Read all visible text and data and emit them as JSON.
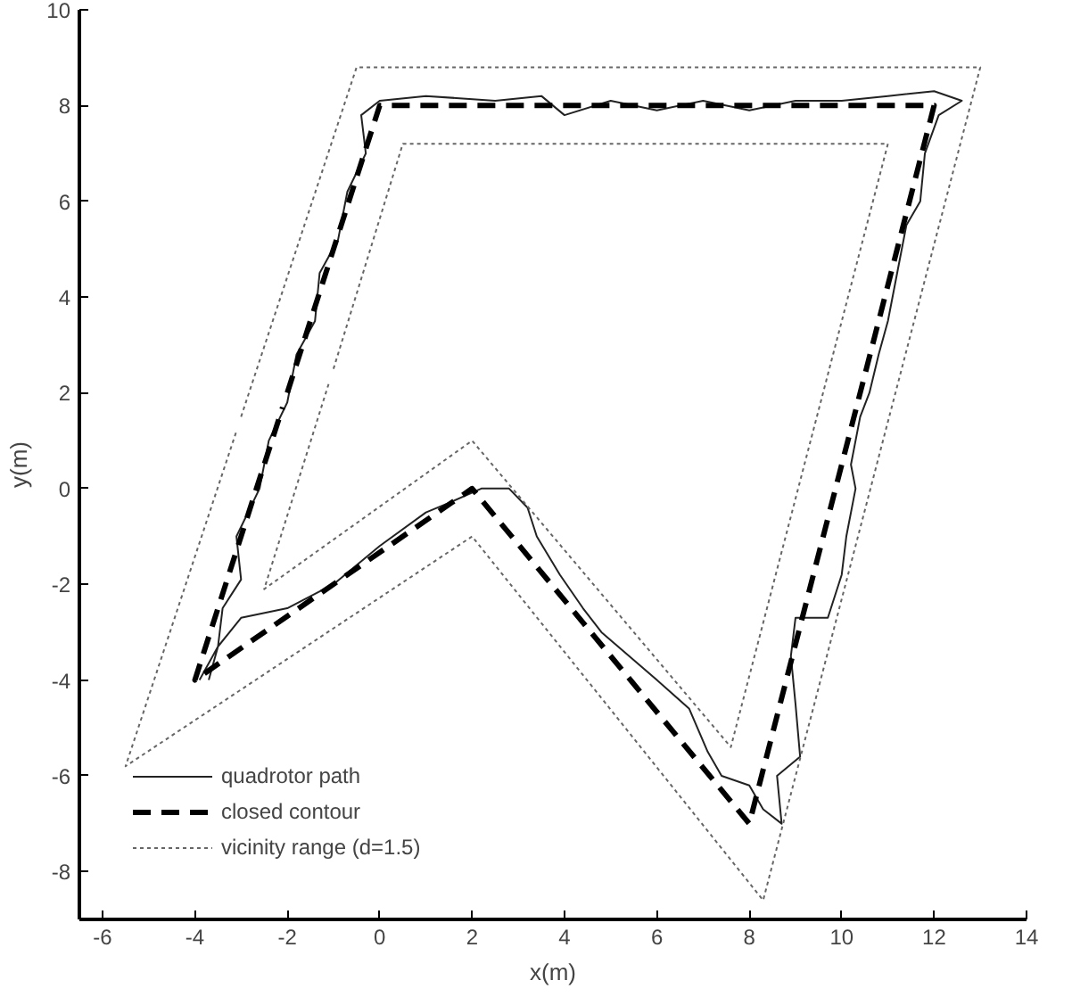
{
  "chart_data": {
    "type": "line",
    "xlabel": "x(m)",
    "ylabel": "y(m)",
    "xlim": [
      -6.5,
      14
    ],
    "ylim": [
      -9,
      10
    ],
    "xticks": [
      -6,
      -4,
      -2,
      0,
      2,
      4,
      6,
      8,
      10,
      12,
      14
    ],
    "yticks": [
      -8,
      -6,
      -4,
      -2,
      0,
      2,
      4,
      6,
      8,
      10
    ],
    "grid": false,
    "legend": "bottom left",
    "series": [
      {
        "name": "quadrotor path",
        "color": "#222222",
        "line_style": "solid",
        "x": [
          -3.9,
          -3.5,
          -3.4,
          -3.0,
          -3.1,
          -2.6,
          -2.4,
          -2.0,
          -1.8,
          -1.4,
          -1.3,
          -0.9,
          -0.7,
          -0.3,
          -0.4,
          0,
          1,
          2.5,
          3.5,
          4,
          5,
          6,
          7,
          8,
          9,
          10,
          11,
          12,
          12.6,
          12.1,
          11.8,
          11.7,
          11.4,
          11.2,
          11.0,
          10.8,
          10.6,
          10.4,
          10.2,
          10.3,
          10.1,
          10.0,
          9.7,
          9.0,
          8.9,
          9.0,
          9.1,
          8.6,
          8.7,
          8.3,
          8.0,
          7.4,
          7.1,
          6.7,
          6.0,
          5.4,
          4.8,
          4.4,
          3.9,
          3.4,
          3.2,
          2.8,
          2.2,
          1.5,
          1,
          0,
          -1,
          -2,
          -3,
          -3.5,
          -3.7
        ],
        "values": [
          -4.0,
          -3.3,
          -2.5,
          -1.9,
          -1.0,
          0.0,
          1.0,
          1.8,
          2.8,
          3.5,
          4.5,
          5.2,
          6.2,
          7.0,
          7.8,
          8.1,
          8.2,
          8.1,
          8.2,
          7.8,
          8.1,
          7.9,
          8.1,
          7.9,
          8.1,
          8.1,
          8.2,
          8.3,
          8.1,
          7.8,
          7,
          6,
          5.5,
          4.5,
          3.5,
          2.8,
          2.0,
          1.5,
          0.5,
          0,
          -1,
          -1.8,
          -2.7,
          -2.7,
          -3.5,
          -4.5,
          -5.6,
          -6.0,
          -7.0,
          -6.7,
          -6.2,
          -6.0,
          -5.5,
          -4.6,
          -4.0,
          -3.5,
          -3.0,
          -2.5,
          -1.8,
          -1.0,
          -0.4,
          0,
          0,
          -0.3,
          -0.5,
          -1.2,
          -2.0,
          -2.5,
          -2.7,
          -3.3,
          -4.0
        ]
      },
      {
        "name": "closed contour",
        "color": "#000000",
        "line_style": "dashed",
        "x": [
          -2,
          0,
          12,
          8,
          2,
          -4,
          -2.1
        ],
        "values": [
          2,
          8,
          8,
          -7,
          0,
          -4,
          1.7
        ]
      },
      {
        "name": "vicinity range (d=1.5)",
        "color": "#666666",
        "line_style": "dotted",
        "x": [
          -3,
          -0.5,
          13,
          8.3,
          2,
          -5.5,
          -3.1,
          null,
          -1,
          0.5,
          11,
          7.6,
          2,
          -2.5,
          -1.1
        ],
        "values": [
          1.5,
          8.8,
          8.8,
          -8.6,
          -1,
          -5.8,
          1.2,
          null,
          2.5,
          7.2,
          7.2,
          -5.4,
          1,
          -2.1,
          2.2
        ]
      }
    ]
  }
}
